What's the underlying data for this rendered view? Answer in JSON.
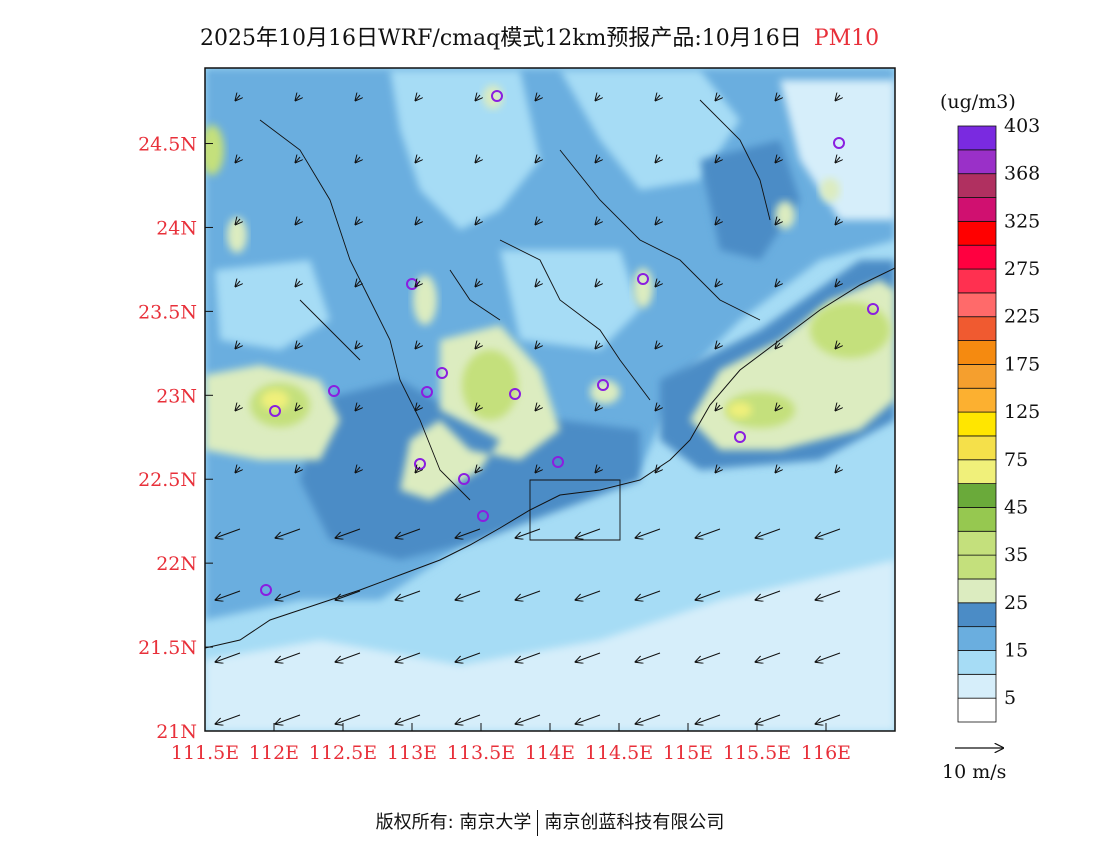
{
  "title": {
    "main": "2025年10月16日WRF/cmaq模式12km预报产品:10月16日",
    "product": "PM10"
  },
  "colors": {
    "accent_red": "#e8303a",
    "sea_light": "#d6eefa",
    "sea": "#a6dcf5",
    "land_low": "#6aaedf",
    "land_mid": "#4b8cc6",
    "land_high": "#dcecc0",
    "plume_green": "#c4e07c",
    "plume_yellow": "#f0f07a"
  },
  "map": {
    "lon_labels": [
      "111.5E",
      "112E",
      "112.5E",
      "113E",
      "113.5E",
      "114E",
      "114.5E",
      "115E",
      "115.5E",
      "116E"
    ],
    "lat_labels": [
      "24.5N",
      "24N",
      "23.5N",
      "23N",
      "22.5N",
      "22N",
      "21.5N",
      "21N"
    ],
    "lon_range": [
      111.5,
      116.5
    ],
    "lat_range": [
      21.0,
      24.95
    ],
    "wind_reference": {
      "label": "10 m/s",
      "speed": 10
    }
  },
  "legend": {
    "unit": "(ug/m3)",
    "colors": [
      "#ffffff",
      "#d6eefa",
      "#a6dcf5",
      "#6aaedf",
      "#4b8cc6",
      "#dcecc0",
      "#c4e07c",
      "#c4e07c",
      "#96c850",
      "#6aaa3a",
      "#f0f07a",
      "#f5e04a",
      "#ffe600",
      "#fcb030",
      "#f59f2e",
      "#f58a10",
      "#f05a30",
      "#ff6a6a",
      "#ff3050",
      "#ff0040",
      "#ff0000",
      "#d01070",
      "#b03060",
      "#9a30c8",
      "#7a2ae0"
    ],
    "labels": [
      "5",
      "15",
      "25",
      "35",
      "45",
      "75",
      "125",
      "175",
      "225",
      "275",
      "325",
      "368",
      "403"
    ]
  },
  "footer": {
    "copyright_prefix": "版权所有:",
    "org1": "南京大学",
    "org2": "南京创蓝科技有限公司"
  }
}
